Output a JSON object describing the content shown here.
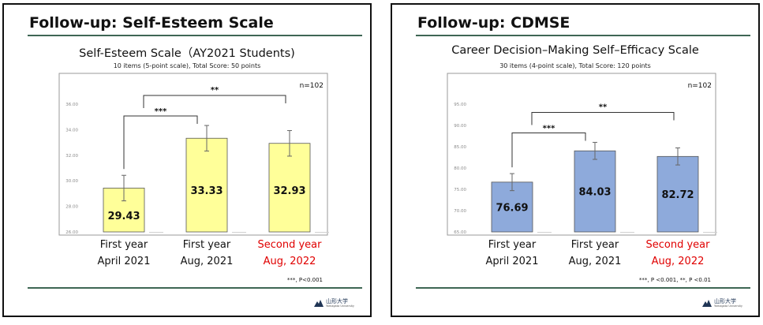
{
  "slides": [
    {
      "slide_title": "Follow-up: Self-Esteem Scale",
      "chart_title": "Self-Esteem Scale（AY2021 Students)",
      "chart_subtitle": "10 items (5-point scale), Total Score: 50 points",
      "logo_text": "山形大学",
      "logo_sub": "Yamagata University"
    },
    {
      "slide_title": "Follow-up: CDMSE",
      "chart_title": "Career Decision–Making Self–Efficacy Scale",
      "chart_subtitle": "30 items (4-point scale), Total Score: 120 points",
      "logo_text": "山形大学",
      "logo_sub": "Yamagata University"
    }
  ],
  "chart_data": [
    {
      "type": "bar",
      "categories": [
        [
          "First year",
          "April 2021"
        ],
        [
          "First year",
          "Aug, 2021"
        ],
        [
          "Second year",
          "Aug, 2022"
        ]
      ],
      "category_colors": [
        "#111111",
        "#111111",
        "#e00000"
      ],
      "values": [
        29.43,
        33.33,
        32.93
      ],
      "value_labels": [
        "29.43",
        "33.33",
        "32.93"
      ],
      "errors": [
        1.0,
        1.0,
        1.0
      ],
      "ylim": [
        26,
        36
      ],
      "yticks": [
        26,
        28,
        30,
        32,
        34,
        36
      ],
      "ytick_labels": [
        "26.00",
        "28.00",
        "30.00",
        "32.00",
        "34.00",
        "36.00"
      ],
      "bar_color": "#ffff99",
      "n_label": "n=102",
      "significance": [
        {
          "from": 0,
          "to": 1,
          "label": "***"
        },
        {
          "from": 1,
          "to": 2,
          "label": "**",
          "span_from": 0
        }
      ],
      "footnote": "***, P<0.001",
      "grid": false
    },
    {
      "type": "bar",
      "categories": [
        [
          "First year",
          "April 2021"
        ],
        [
          "First year",
          "Aug, 2021"
        ],
        [
          "Second year",
          "Aug, 2022"
        ]
      ],
      "category_colors": [
        "#111111",
        "#111111",
        "#e00000"
      ],
      "values": [
        76.69,
        84.03,
        82.72
      ],
      "value_labels": [
        "76.69",
        "84.03",
        "82.72"
      ],
      "errors": [
        2.0,
        2.0,
        2.0
      ],
      "ylim": [
        65,
        95
      ],
      "yticks": [
        65,
        70,
        75,
        80,
        85,
        90,
        95
      ],
      "ytick_labels": [
        "65.00",
        "70.00",
        "75.00",
        "80.00",
        "85.00",
        "90.00",
        "95.00"
      ],
      "bar_color": "#8eaadb",
      "n_label": "n=102",
      "significance": [
        {
          "from": 0,
          "to": 1,
          "label": "***"
        },
        {
          "from": 1,
          "to": 2,
          "label": "**",
          "span_from": 0
        }
      ],
      "footnote": "***, P <0.001, **, P <0.01",
      "grid": false
    }
  ]
}
